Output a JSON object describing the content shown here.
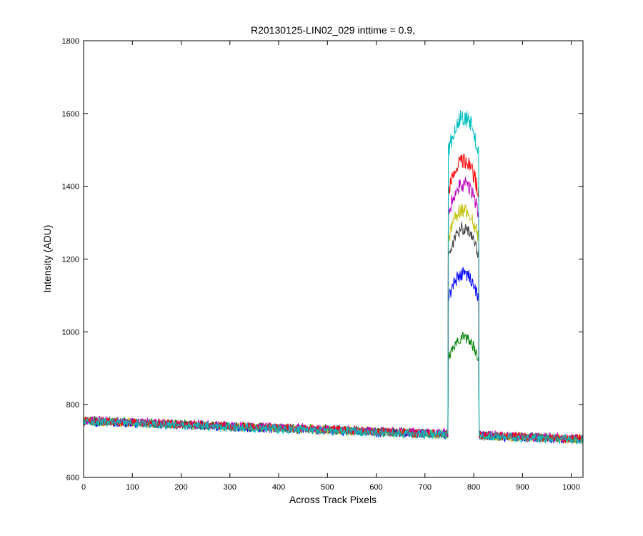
{
  "chart_data": {
    "type": "line",
    "title": "R20130125-LIN02_029 inttime = 0.9,",
    "xlabel": "Across Track Pixels",
    "ylabel": "Intensity (ADU)",
    "xlim": [
      0,
      1024
    ],
    "ylim": [
      600,
      1800
    ],
    "xticks": [
      0,
      100,
      200,
      300,
      400,
      500,
      600,
      700,
      800,
      900,
      1000
    ],
    "yticks": [
      600,
      800,
      1000,
      1200,
      1400,
      1600,
      1800
    ],
    "xtick_labels": [
      "0",
      "100",
      "200",
      "300",
      "400",
      "500",
      "600",
      "700",
      "800",
      "900",
      "1000"
    ],
    "ytick_labels": [
      "600",
      "800",
      "1000",
      "1200",
      "1400",
      "1600",
      "1800"
    ],
    "grid": false,
    "legend": "none",
    "baseline": {
      "start_value": 755,
      "end_value": 705,
      "noise_amplitude": 14
    },
    "pulse": {
      "x_start": 748,
      "x_end": 810
    },
    "series": [
      {
        "color": "#008000",
        "peak": 985,
        "pulse_noise": 15,
        "baseline_offset": 0
      },
      {
        "color": "#0000FF",
        "peak": 1160,
        "pulse_noise": 18,
        "baseline_offset": -2
      },
      {
        "color": "#404040",
        "peak": 1285,
        "pulse_noise": 18,
        "baseline_offset": 1
      },
      {
        "color": "#BFBF00",
        "peak": 1335,
        "pulse_noise": 20,
        "baseline_offset": -1
      },
      {
        "color": "#BF00BF",
        "peak": 1405,
        "pulse_noise": 22,
        "baseline_offset": 2
      },
      {
        "color": "#FF0000",
        "peak": 1470,
        "pulse_noise": 22,
        "baseline_offset": 0
      },
      {
        "color": "#00BFBF",
        "peak": 1590,
        "pulse_noise": 25,
        "baseline_offset": -2
      }
    ]
  }
}
